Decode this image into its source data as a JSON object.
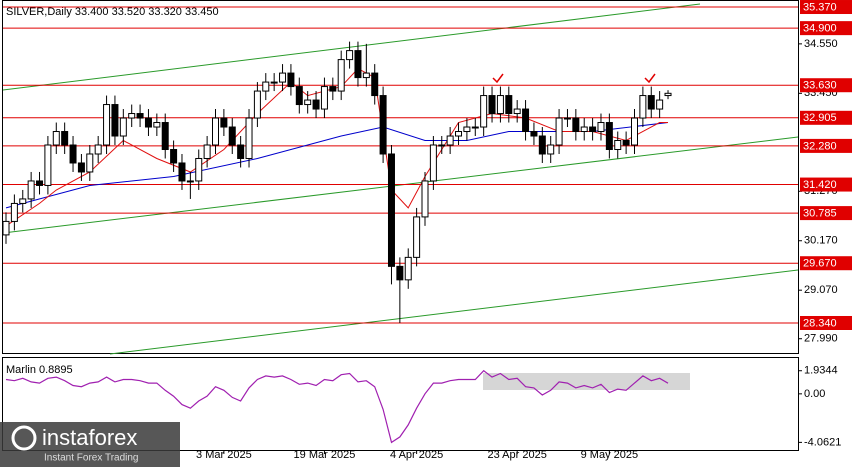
{
  "chart_data": [
    {
      "type": "candlestick",
      "title": "SILVER,Daily  33.400 33.520 33.320 33.450",
      "open": [
        30.3,
        30.6,
        31.0,
        31.1,
        31.5,
        31.4,
        32.3,
        32.6,
        32.3,
        31.9,
        31.7,
        32.1,
        32.3,
        33.2,
        32.5,
        32.9,
        33.0,
        32.9,
        32.7,
        32.8,
        32.2,
        31.9,
        31.5,
        31.5,
        32.0,
        32.3,
        32.9,
        32.7,
        32.3,
        32.0,
        32.9,
        33.5,
        33.7,
        33.7,
        33.9,
        33.6,
        33.2,
        33.3,
        33.1,
        33.6,
        33.5,
        34.2,
        34.4,
        33.8,
        33.9,
        33.4,
        32.1,
        29.6,
        29.3,
        29.8,
        30.7,
        31.5,
        32.3,
        32.3,
        32.5,
        32.6,
        32.7,
        32.7,
        33.4,
        33.0,
        33.4,
        33.0,
        33.1,
        32.6,
        32.5,
        32.1,
        32.3,
        32.9,
        32.9,
        32.6,
        32.7,
        32.6,
        32.8,
        32.2,
        32.4,
        32.3,
        32.9,
        33.4,
        33.1,
        33.4
      ],
      "high": [
        30.8,
        31.2,
        31.3,
        31.7,
        31.7,
        32.5,
        32.8,
        32.8,
        32.5,
        32.1,
        32.3,
        32.5,
        33.4,
        33.4,
        33.1,
        33.2,
        33.2,
        33.1,
        33.0,
        33.0,
        32.4,
        32.1,
        31.7,
        32.2,
        32.5,
        33.1,
        33.1,
        32.9,
        32.5,
        33.1,
        33.7,
        33.9,
        33.9,
        34.1,
        34.1,
        33.8,
        33.5,
        33.5,
        33.8,
        33.8,
        34.4,
        34.6,
        34.6,
        34.55,
        34.1,
        33.6,
        32.3,
        29.8,
        30.0,
        30.9,
        31.7,
        32.5,
        32.5,
        32.7,
        32.8,
        32.9,
        32.9,
        33.6,
        33.6,
        33.6,
        33.6,
        33.3,
        33.3,
        32.8,
        32.7,
        32.5,
        33.1,
        33.1,
        33.1,
        32.9,
        32.9,
        33.0,
        33.0,
        32.6,
        32.6,
        33.1,
        33.6,
        33.6,
        33.5,
        33.52
      ],
      "low": [
        30.1,
        30.4,
        30.8,
        30.9,
        31.2,
        31.2,
        32.1,
        32.1,
        31.7,
        31.5,
        31.5,
        31.9,
        32.1,
        32.3,
        32.3,
        32.7,
        32.7,
        32.5,
        32.5,
        32.0,
        31.7,
        31.3,
        31.1,
        31.3,
        31.8,
        32.1,
        32.5,
        32.1,
        31.8,
        31.8,
        32.7,
        33.3,
        33.5,
        33.5,
        33.4,
        33.0,
        33.0,
        32.9,
        32.9,
        33.3,
        33.3,
        34.0,
        33.6,
        33.6,
        33.2,
        31.9,
        29.2,
        28.34,
        29.1,
        29.6,
        30.5,
        31.3,
        32.1,
        32.1,
        32.3,
        32.4,
        32.5,
        32.5,
        32.8,
        32.8,
        32.8,
        32.8,
        32.4,
        32.3,
        31.9,
        31.9,
        32.1,
        32.7,
        32.4,
        32.4,
        32.4,
        32.4,
        32.0,
        32.0,
        32.1,
        32.1,
        32.7,
        32.9,
        32.9,
        33.32
      ],
      "close": [
        30.6,
        31.0,
        31.1,
        31.5,
        31.4,
        32.3,
        32.6,
        32.3,
        31.9,
        31.7,
        32.1,
        32.3,
        33.2,
        32.5,
        32.9,
        33.0,
        32.9,
        32.7,
        32.8,
        32.2,
        31.9,
        31.5,
        31.5,
        32.0,
        32.3,
        32.9,
        32.7,
        32.3,
        32.0,
        32.9,
        33.5,
        33.7,
        33.7,
        33.9,
        33.6,
        33.2,
        33.3,
        33.1,
        33.6,
        33.5,
        34.2,
        34.4,
        33.8,
        33.9,
        33.4,
        32.1,
        29.6,
        29.3,
        29.8,
        30.7,
        31.5,
        32.3,
        32.3,
        32.5,
        32.6,
        32.7,
        32.7,
        33.4,
        33.0,
        33.4,
        33.0,
        33.1,
        32.6,
        32.5,
        32.1,
        32.3,
        32.9,
        32.9,
        32.6,
        32.7,
        32.6,
        32.8,
        32.2,
        32.4,
        32.3,
        32.9,
        33.4,
        33.1,
        33.3,
        33.45
      ],
      "moving_averages": [
        {
          "color": "#0000cc",
          "x": [
            0,
            10,
            20,
            30,
            40,
            45,
            50,
            55,
            60,
            70,
            79
          ],
          "values": [
            30.9,
            31.4,
            31.6,
            32.0,
            32.5,
            32.7,
            32.4,
            32.4,
            32.6,
            32.6,
            32.8
          ]
        },
        {
          "color": "#e01010",
          "x": [
            0,
            4,
            6,
            10,
            14,
            18,
            22,
            26,
            30,
            34,
            36,
            40,
            42,
            44,
            46,
            48,
            50,
            54,
            58,
            62,
            66,
            70,
            74,
            78,
            79
          ],
          "values": [
            30.5,
            31.0,
            31.3,
            31.7,
            32.4,
            32.0,
            31.7,
            32.2,
            33.0,
            33.7,
            33.4,
            33.6,
            34.0,
            33.8,
            31.3,
            30.9,
            31.6,
            32.8,
            33.0,
            32.9,
            32.6,
            32.6,
            32.4,
            32.8,
            32.8
          ]
        }
      ],
      "ylim": [
        27.628,
        35.526
      ],
      "yticks": [
        {
          "value": 34.55,
          "label": "34.550"
        },
        {
          "value": 33.45,
          "label": "33.450"
        },
        {
          "value": 31.27,
          "label": "31.270"
        },
        {
          "value": 30.17,
          "label": "30.170"
        },
        {
          "value": 29.07,
          "label": "29.070"
        },
        {
          "value": 27.99,
          "label": "27.990"
        }
      ],
      "levels": [
        {
          "value": 35.37,
          "label": "35.370"
        },
        {
          "value": 34.9,
          "label": "34.900"
        },
        {
          "value": 33.63,
          "label": "33.630"
        },
        {
          "value": 32.905,
          "label": "32.905"
        },
        {
          "value": 32.28,
          "label": "32.280"
        },
        {
          "value": 31.42,
          "label": "31.420"
        },
        {
          "value": 30.785,
          "label": "30.785"
        },
        {
          "value": 29.67,
          "label": "29.670"
        },
        {
          "value": 28.34,
          "label": "28.340"
        }
      ],
      "level_color": "#e00000",
      "xticks": [
        {
          "value": 26,
          "label": "3 Mar 2025"
        },
        {
          "value": 38,
          "label": "19 Mar 2025"
        },
        {
          "value": 49,
          "label": "4 Apr 2025"
        },
        {
          "value": 61,
          "label": "23 Apr 2025"
        },
        {
          "value": 72,
          "label": "9 May 2025"
        }
      ]
    },
    {
      "type": "line",
      "title": "Marlin 0.8895",
      "color": "#a020b0",
      "values": [
        1.2,
        1.1,
        1.3,
        1.0,
        0.9,
        1.3,
        1.4,
        1.1,
        0.7,
        0.6,
        0.9,
        1.0,
        1.4,
        1.0,
        1.2,
        1.2,
        1.1,
        0.9,
        0.9,
        0.3,
        -0.2,
        -0.9,
        -1.2,
        -0.6,
        -0.2,
        0.6,
        0.3,
        -0.3,
        -0.6,
        0.5,
        1.2,
        1.5,
        1.4,
        1.5,
        1.2,
        0.8,
        0.9,
        0.7,
        1.2,
        1.1,
        1.6,
        1.7,
        1.0,
        1.1,
        0.6,
        -1.3,
        -4.0621,
        -3.6,
        -2.6,
        -1.2,
        0.0,
        0.9,
        0.9,
        1.1,
        1.2,
        1.2,
        1.2,
        1.9344,
        1.4,
        1.7,
        1.2,
        1.3,
        0.6,
        0.5,
        -0.1,
        0.3,
        1.0,
        0.9,
        0.5,
        0.7,
        0.5,
        0.8,
        0.1,
        0.4,
        0.3,
        0.9,
        1.5,
        1.1,
        1.3,
        0.8895
      ],
      "ylim": [
        -4.7,
        3.0
      ],
      "yticks": [
        1.9344,
        {
          "value": 0,
          "label": "0.00"
        },
        -4.0621
      ]
    }
  ],
  "watermark": {
    "name": "instaforex",
    "tagline": "Instant Forex Trading"
  }
}
